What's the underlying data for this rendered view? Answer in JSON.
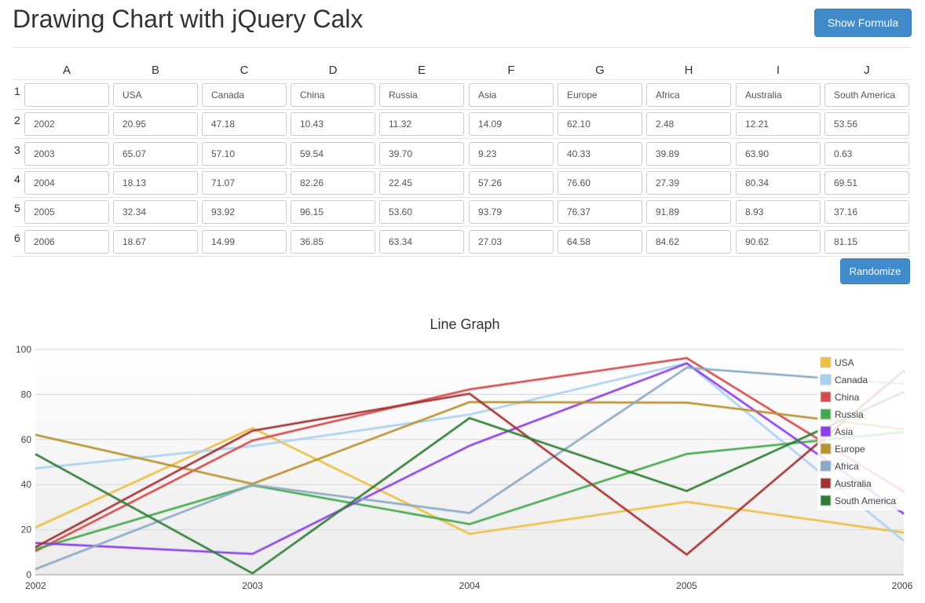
{
  "page": {
    "title": "Drawing Chart with jQuery Calx",
    "show_formula_label": "Show Formula",
    "randomize_label": "Randomize"
  },
  "sheet": {
    "columns": [
      "A",
      "B",
      "C",
      "D",
      "E",
      "F",
      "G",
      "H",
      "I",
      "J"
    ],
    "row_numbers": [
      "1",
      "2",
      "3",
      "4",
      "5",
      "6"
    ],
    "rows": [
      [
        "",
        "USA",
        "Canada",
        "China",
        "Russia",
        "Asia",
        "Europe",
        "Africa",
        "Australia",
        "South America"
      ],
      [
        "2002",
        "20.95",
        "47.18",
        "10.43",
        "11.32",
        "14.09",
        "62.10",
        "2.48",
        "12.21",
        "53.56"
      ],
      [
        "2003",
        "65.07",
        "57.10",
        "59.54",
        "39.70",
        "9.23",
        "40.33",
        "39.89",
        "63.90",
        "0.63"
      ],
      [
        "2004",
        "18.13",
        "71.07",
        "82.26",
        "22.45",
        "57.26",
        "76.60",
        "27.39",
        "80.34",
        "69.51"
      ],
      [
        "2005",
        "32.34",
        "93.92",
        "96.15",
        "53.60",
        "93.79",
        "76.37",
        "91.89",
        "8.93",
        "37.16"
      ],
      [
        "2006",
        "18.67",
        "14.99",
        "36.85",
        "63.34",
        "27.03",
        "64.58",
        "84.62",
        "90.62",
        "81.15"
      ]
    ]
  },
  "chart_data": {
    "type": "line",
    "title": "Line Graph",
    "grid": true,
    "legend": "top-right",
    "x": [
      "2002",
      "2003",
      "2004",
      "2005",
      "2006"
    ],
    "ylim": [
      0,
      100
    ],
    "yticks": [
      "0",
      "20",
      "40",
      "60",
      "80",
      "100"
    ],
    "series": [
      {
        "name": "USA",
        "color": "#ecbf42",
        "values": [
          20.95,
          65.07,
          18.13,
          32.34,
          18.67
        ]
      },
      {
        "name": "Canada",
        "color": "#a9d2f0",
        "values": [
          47.18,
          57.1,
          71.07,
          93.92,
          14.99
        ]
      },
      {
        "name": "China",
        "color": "#d24a4a",
        "values": [
          10.43,
          59.54,
          82.26,
          96.15,
          36.85
        ]
      },
      {
        "name": "Russia",
        "color": "#44a84c",
        "values": [
          11.32,
          39.7,
          22.45,
          53.6,
          63.34
        ]
      },
      {
        "name": "Asia",
        "color": "#8b3ee8",
        "values": [
          14.09,
          9.23,
          57.26,
          93.79,
          27.03
        ]
      },
      {
        "name": "Europe",
        "color": "#b8922f",
        "values": [
          62.1,
          40.33,
          76.6,
          76.37,
          64.58
        ]
      },
      {
        "name": "Africa",
        "color": "#8aa9c2",
        "values": [
          2.48,
          39.89,
          27.39,
          91.89,
          84.62
        ]
      },
      {
        "name": "Australia",
        "color": "#a13232",
        "values": [
          12.21,
          63.9,
          80.34,
          8.93,
          90.62
        ]
      },
      {
        "name": "South America",
        "color": "#2f7d34",
        "values": [
          53.56,
          0.63,
          69.51,
          37.16,
          81.15
        ]
      }
    ]
  }
}
